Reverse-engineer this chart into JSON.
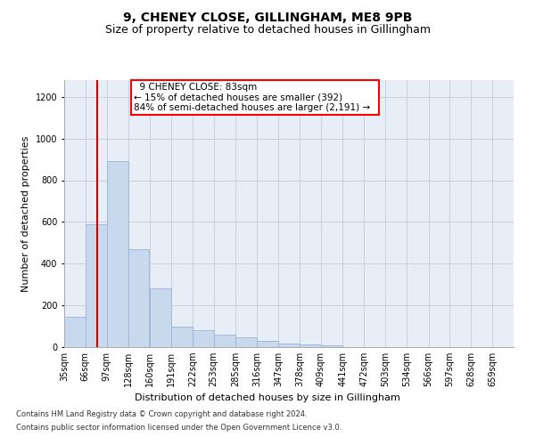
{
  "title": "9, CHENEY CLOSE, GILLINGHAM, ME8 9PB",
  "subtitle": "Size of property relative to detached houses in Gillingham",
  "xlabel": "Distribution of detached houses by size in Gillingham",
  "ylabel": "Number of detached properties",
  "annotation_line1": "9 CHENEY CLOSE: 83sqm",
  "annotation_line2": "← 15% of detached houses are smaller (392)",
  "annotation_line3": "84% of semi-detached houses are larger (2,191) →",
  "footnote1": "Contains HM Land Registry data © Crown copyright and database right 2024.",
  "footnote2": "Contains public sector information licensed under the Open Government Licence v3.0.",
  "bar_color": "#c8d9ee",
  "bar_edge_color": "#9ab4d4",
  "red_line_color": "#cc0000",
  "red_line_x": 83,
  "categories": [
    "35sqm",
    "66sqm",
    "97sqm",
    "128sqm",
    "160sqm",
    "191sqm",
    "222sqm",
    "253sqm",
    "285sqm",
    "316sqm",
    "347sqm",
    "378sqm",
    "409sqm",
    "441sqm",
    "472sqm",
    "503sqm",
    "534sqm",
    "566sqm",
    "597sqm",
    "628sqm",
    "659sqm"
  ],
  "bin_edges": [
    35,
    66,
    97,
    128,
    160,
    191,
    222,
    253,
    285,
    316,
    347,
    378,
    409,
    441,
    472,
    503,
    534,
    566,
    597,
    628,
    659
  ],
  "bin_width": 31,
  "values": [
    145,
    590,
    890,
    470,
    280,
    100,
    80,
    58,
    48,
    32,
    18,
    12,
    10,
    0,
    0,
    0,
    0,
    0,
    0,
    0,
    0
  ],
  "ylim": [
    0,
    1280
  ],
  "yticks": [
    0,
    200,
    400,
    600,
    800,
    1000,
    1200
  ],
  "plot_bg_color": "#e8eef8",
  "background_color": "#ffffff",
  "grid_color": "#c8d0e0",
  "title_fontsize": 10,
  "subtitle_fontsize": 9,
  "axis_label_fontsize": 8,
  "tick_fontsize": 7,
  "annot_fontsize": 7.5,
  "footnote_fontsize": 6
}
